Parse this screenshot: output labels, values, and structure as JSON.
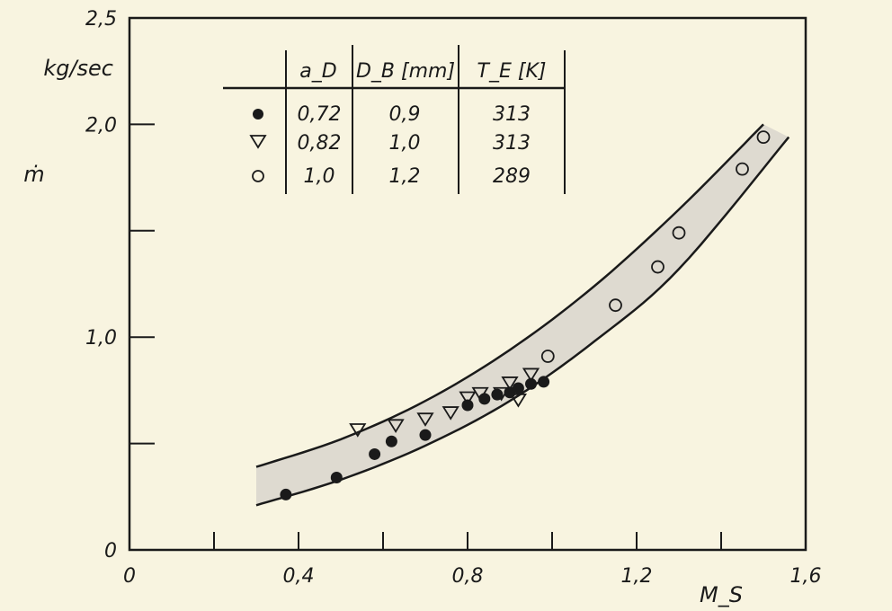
{
  "chart_data": {
    "type": "scatter",
    "xlabel": "M_S",
    "ylabel": "ṁ",
    "y_unit": "kg/sec",
    "xlim": [
      0,
      1.6
    ],
    "ylim": [
      0,
      2.5
    ],
    "x_ticks": [
      0,
      0.2,
      0.4,
      0.6,
      0.8,
      1.0,
      1.2,
      1.4,
      1.6
    ],
    "x_tick_labels": [
      "0",
      "",
      "0,4",
      "",
      "0,8",
      "",
      "1,2",
      "",
      "1,6"
    ],
    "y_ticks": [
      0,
      0.5,
      1.0,
      1.5,
      2.0,
      2.5
    ],
    "y_tick_labels": [
      "0",
      "",
      "1,0",
      "",
      "2,0",
      "2,5"
    ],
    "grid": false,
    "legend_position": "top-left",
    "legend_table": {
      "headers": [
        "a_D",
        "D_B [mm]",
        "T_E [K]"
      ],
      "rows": [
        {
          "marker": "filled-circle",
          "a_D": "0,72",
          "D_B": "0,9",
          "T_E": "313"
        },
        {
          "marker": "open-triangle-down",
          "a_D": "0,82",
          "D_B": "1,0",
          "T_E": "313"
        },
        {
          "marker": "open-circle",
          "a_D": "1,0",
          "D_B": "1,2",
          "T_E": "289"
        }
      ]
    },
    "series": [
      {
        "marker": "filled-circle",
        "x": [
          0.37,
          0.49,
          0.58,
          0.62,
          0.7,
          0.8,
          0.84,
          0.87,
          0.9,
          0.92,
          0.95,
          0.98
        ],
        "y": [
          0.26,
          0.34,
          0.45,
          0.51,
          0.54,
          0.68,
          0.71,
          0.73,
          0.74,
          0.76,
          0.78,
          0.79
        ]
      },
      {
        "marker": "open-triangle-down",
        "x": [
          0.54,
          0.63,
          0.7,
          0.76,
          0.8,
          0.83,
          0.88,
          0.9,
          0.92,
          0.95
        ],
        "y": [
          0.57,
          0.59,
          0.62,
          0.65,
          0.72,
          0.74,
          0.74,
          0.79,
          0.71,
          0.83
        ]
      },
      {
        "marker": "open-circle",
        "x": [
          0.99,
          1.15,
          1.25,
          1.3,
          1.45,
          1.5
        ],
        "y": [
          0.91,
          1.15,
          1.33,
          1.49,
          1.79,
          1.94
        ]
      }
    ],
    "band": {
      "upper": {
        "x": [
          0.3,
          0.5,
          0.7,
          0.9,
          1.1,
          1.3,
          1.5
        ],
        "y": [
          0.39,
          0.52,
          0.7,
          0.94,
          1.24,
          1.6,
          2.0
        ]
      },
      "lower": {
        "x": [
          0.3,
          0.5,
          0.7,
          0.9,
          1.1,
          1.3,
          1.56
        ],
        "y": [
          0.21,
          0.33,
          0.49,
          0.7,
          0.98,
          1.32,
          1.94
        ]
      },
      "fill": "#dedad0",
      "line_color": "#1a1a1a"
    },
    "colors": {
      "background": "#f8f4e0",
      "ink": "#1a1a1a"
    }
  }
}
